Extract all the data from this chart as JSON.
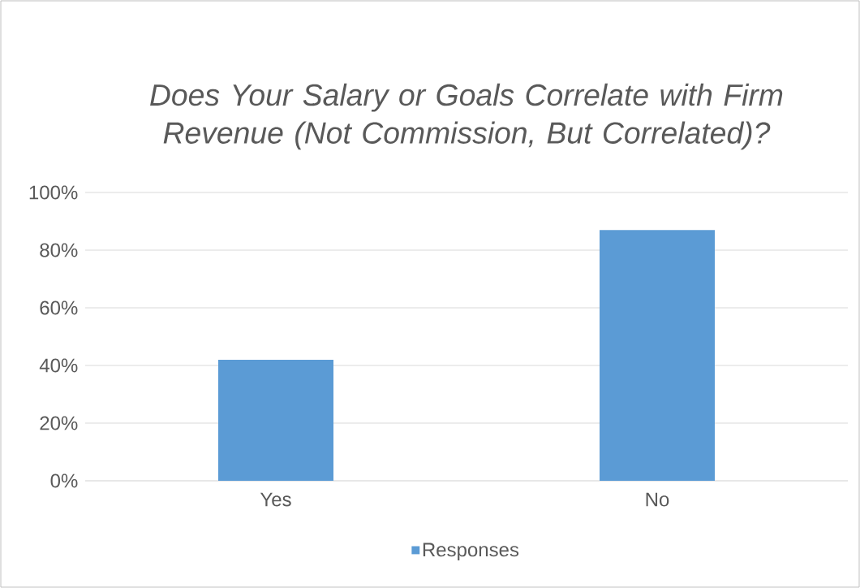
{
  "chart_data": {
    "type": "bar",
    "title": "*Does Your Salary or Goals Correlate with Firm Revenue (Not Commission, But Correlated)?*",
    "categories": [
      "Yes",
      "No"
    ],
    "series": [
      {
        "name": "Responses",
        "color": "#5b9bd5",
        "values": [
          42,
          87
        ]
      }
    ],
    "ylim": [
      0,
      100
    ],
    "yticks": [
      {
        "value": 0,
        "label": "0%"
      },
      {
        "value": 20,
        "label": "20%"
      },
      {
        "value": 40,
        "label": "40%"
      },
      {
        "value": 60,
        "label": "60%"
      },
      {
        "value": 80,
        "label": "80%"
      },
      {
        "value": 100,
        "label": "100%"
      }
    ],
    "grid": "y",
    "legend": "bottom"
  }
}
